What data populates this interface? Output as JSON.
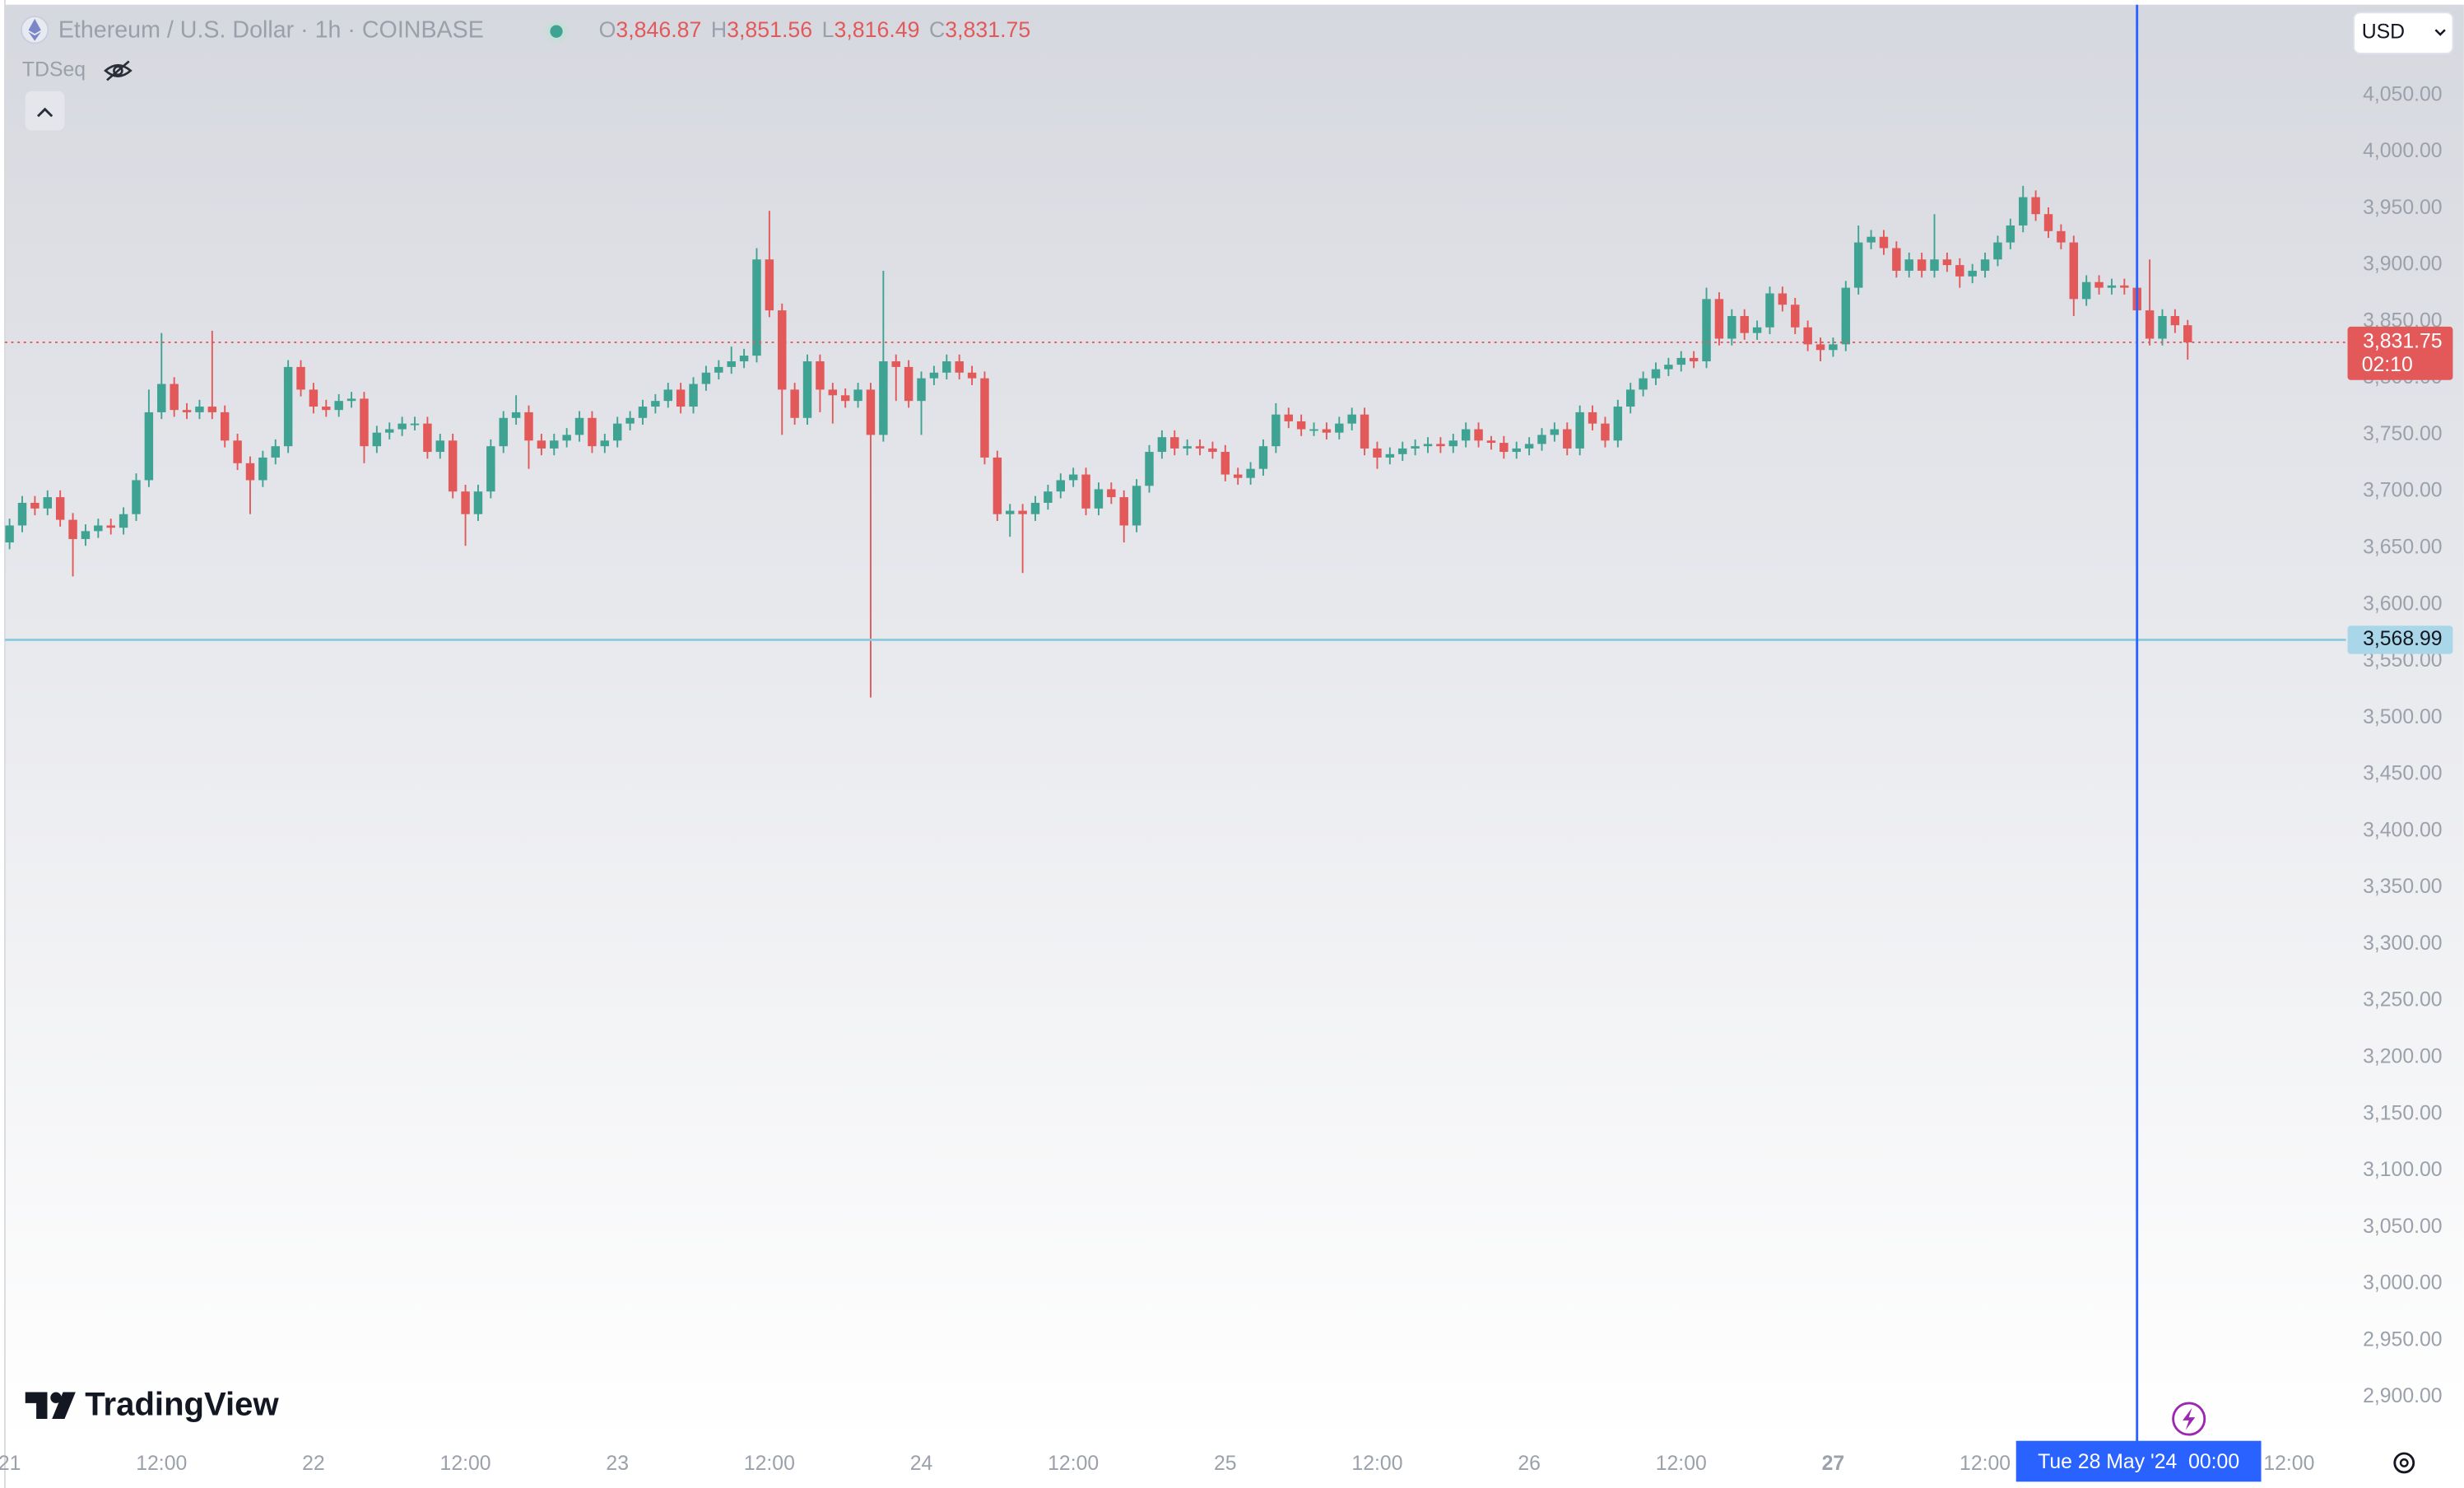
{
  "chart_data": {
    "type": "candlestick",
    "title": "Ethereum / U.S. Dollar · 1h · COINBASE",
    "indicator": "TDSeq",
    "currency": "USD",
    "brand": "TradingView",
    "ohlc_legend": [
      {
        "key": "O",
        "value": "3,846.87"
      },
      {
        "key": "H",
        "value": "3,851.56"
      },
      {
        "key": "L",
        "value": "3,816.49"
      },
      {
        "key": "C",
        "value": "3,831.75"
      }
    ],
    "up_color": "#3fa393",
    "down_color": "#e3595a",
    "grid": false,
    "open": [
      3655,
      3670,
      3690,
      3685,
      3695,
      3675,
      3658,
      3665,
      3670,
      3668,
      3680,
      3710,
      3770,
      3795,
      3772,
      3770,
      3775,
      3770,
      3745,
      3725,
      3710,
      3730,
      3740,
      3810,
      3790,
      3775,
      3772,
      3780,
      3782,
      3740,
      3752,
      3755,
      3760,
      3760,
      3735,
      3745,
      3700,
      3680,
      3700,
      3740,
      3765,
      3770,
      3745,
      3738,
      3745,
      3750,
      3765,
      3740,
      3745,
      3760,
      3765,
      3775,
      3780,
      3790,
      3775,
      3795,
      3805,
      3810,
      3815,
      3820,
      3905,
      3860,
      3790,
      3765,
      3815,
      3790,
      3785,
      3780,
      3790,
      3750,
      3815,
      3810,
      3780,
      3800,
      3805,
      3815,
      3805,
      3800,
      3730,
      3680,
      3683,
      3680,
      3690,
      3700,
      3710,
      3715,
      3685,
      3702,
      3695,
      3670,
      3705,
      3735,
      3748,
      3738,
      3740,
      3738,
      3735,
      3715,
      3712,
      3720,
      3740,
      3768,
      3762,
      3755,
      3755,
      3752,
      3760,
      3768,
      3738,
      3730,
      3733,
      3738,
      3740,
      3742,
      3740,
      3745,
      3755,
      3745,
      3743,
      3735,
      3738,
      3742,
      3750,
      3755,
      3738,
      3770,
      3760,
      3745,
      3775,
      3790,
      3800,
      3808,
      3812,
      3818,
      3815,
      3870,
      3835,
      3855,
      3840,
      3845,
      3875,
      3865,
      3845,
      3830,
      3825,
      3830,
      3880,
      3920,
      3925,
      3915,
      3895,
      3905,
      3895,
      3905,
      3900,
      3890,
      3895,
      3905,
      3920,
      3935,
      3960,
      3945,
      3930,
      3920,
      3870,
      3885,
      3880,
      3882,
      3880,
      3860,
      3835,
      3855,
      3846.87
    ],
    "high": [
      3676,
      3696,
      3696,
      3701,
      3701,
      3681,
      3671,
      3676,
      3676,
      3686,
      3716,
      3790,
      3840,
      3801,
      3778,
      3781,
      3842,
      3776,
      3751,
      3731,
      3736,
      3746,
      3816,
      3816,
      3796,
      3781,
      3786,
      3788,
      3788,
      3758,
      3761,
      3766,
      3766,
      3766,
      3751,
      3751,
      3706,
      3706,
      3746,
      3771,
      3785,
      3776,
      3751,
      3751,
      3756,
      3771,
      3771,
      3751,
      3766,
      3771,
      3781,
      3786,
      3796,
      3796,
      3801,
      3811,
      3816,
      3828,
      3826,
      3915,
      3948,
      3866,
      3796,
      3821,
      3821,
      3796,
      3791,
      3796,
      3796,
      3895,
      3821,
      3816,
      3806,
      3811,
      3821,
      3821,
      3811,
      3806,
      3736,
      3689,
      3689,
      3696,
      3706,
      3716,
      3721,
      3721,
      3708,
      3708,
      3701,
      3711,
      3741,
      3754,
      3754,
      3746,
      3746,
      3744,
      3741,
      3721,
      3726,
      3746,
      3778,
      3774,
      3768,
      3761,
      3761,
      3766,
      3774,
      3774,
      3744,
      3739,
      3744,
      3746,
      3748,
      3748,
      3751,
      3761,
      3761,
      3749,
      3749,
      3744,
      3748,
      3756,
      3761,
      3761,
      3776,
      3776,
      3766,
      3781,
      3796,
      3806,
      3814,
      3818,
      3824,
      3824,
      3880,
      3876,
      3861,
      3861,
      3851,
      3881,
      3881,
      3871,
      3851,
      3836,
      3836,
      3886,
      3935,
      3931,
      3931,
      3921,
      3911,
      3911,
      3945,
      3911,
      3906,
      3901,
      3911,
      3926,
      3941,
      3970,
      3966,
      3951,
      3936,
      3926,
      3891,
      3891,
      3888,
      3888,
      3886,
      3905,
      3861,
      3861,
      3851.56
    ],
    "low": [
      3649,
      3664,
      3679,
      3679,
      3669,
      3625,
      3652,
      3659,
      3662,
      3662,
      3674,
      3704,
      3764,
      3766,
      3764,
      3764,
      3764,
      3739,
      3719,
      3680,
      3704,
      3724,
      3734,
      3784,
      3769,
      3766,
      3766,
      3774,
      3725,
      3734,
      3746,
      3749,
      3754,
      3729,
      3729,
      3694,
      3652,
      3674,
      3694,
      3734,
      3759,
      3720,
      3732,
      3732,
      3739,
      3744,
      3734,
      3734,
      3739,
      3754,
      3759,
      3769,
      3774,
      3769,
      3769,
      3789,
      3799,
      3804,
      3809,
      3814,
      3854,
      3750,
      3759,
      3759,
      3770,
      3760,
      3774,
      3774,
      3518,
      3744,
      3780,
      3774,
      3750,
      3794,
      3799,
      3799,
      3794,
      3724,
      3674,
      3660,
      3628,
      3674,
      3684,
      3694,
      3704,
      3679,
      3679,
      3689,
      3655,
      3664,
      3699,
      3729,
      3732,
      3732,
      3732,
      3729,
      3709,
      3706,
      3706,
      3714,
      3734,
      3756,
      3749,
      3749,
      3746,
      3746,
      3754,
      3732,
      3720,
      3724,
      3727,
      3732,
      3734,
      3734,
      3734,
      3739,
      3739,
      3737,
      3729,
      3729,
      3732,
      3736,
      3744,
      3732,
      3732,
      3754,
      3739,
      3739,
      3769,
      3784,
      3794,
      3802,
      3806,
      3809,
      3809,
      3829,
      3829,
      3834,
      3834,
      3839,
      3859,
      3839,
      3824,
      3815,
      3819,
      3824,
      3874,
      3914,
      3909,
      3889,
      3889,
      3889,
      3889,
      3894,
      3880,
      3884,
      3889,
      3899,
      3914,
      3929,
      3939,
      3924,
      3914,
      3855,
      3864,
      3874,
      3874,
      3874,
      3854,
      3829,
      3829,
      3840,
      3816.49
    ],
    "close": [
      3670,
      3690,
      3685,
      3695,
      3675,
      3658,
      3665,
      3670,
      3668,
      3680,
      3710,
      3770,
      3795,
      3772,
      3770,
      3775,
      3770,
      3745,
      3725,
      3710,
      3730,
      3740,
      3810,
      3790,
      3775,
      3772,
      3780,
      3782,
      3740,
      3752,
      3755,
      3760,
      3760,
      3735,
      3745,
      3700,
      3680,
      3700,
      3740,
      3765,
      3770,
      3745,
      3738,
      3745,
      3750,
      3765,
      3740,
      3745,
      3760,
      3765,
      3775,
      3780,
      3790,
      3775,
      3795,
      3805,
      3810,
      3815,
      3820,
      3905,
      3860,
      3790,
      3765,
      3815,
      3790,
      3785,
      3780,
      3790,
      3750,
      3815,
      3810,
      3780,
      3800,
      3805,
      3815,
      3805,
      3800,
      3730,
      3680,
      3683,
      3680,
      3690,
      3700,
      3710,
      3715,
      3685,
      3702,
      3695,
      3670,
      3705,
      3735,
      3748,
      3738,
      3740,
      3738,
      3735,
      3715,
      3712,
      3720,
      3740,
      3768,
      3762,
      3755,
      3755,
      3752,
      3760,
      3768,
      3738,
      3730,
      3733,
      3738,
      3740,
      3742,
      3740,
      3745,
      3755,
      3745,
      3743,
      3735,
      3738,
      3742,
      3750,
      3755,
      3738,
      3770,
      3760,
      3745,
      3775,
      3790,
      3800,
      3808,
      3812,
      3818,
      3815,
      3870,
      3835,
      3855,
      3840,
      3845,
      3875,
      3865,
      3845,
      3830,
      3825,
      3830,
      3880,
      3920,
      3925,
      3915,
      3895,
      3905,
      3895,
      3905,
      3900,
      3890,
      3895,
      3905,
      3920,
      3935,
      3960,
      3945,
      3930,
      3920,
      3870,
      3885,
      3880,
      3882,
      3880,
      3860,
      3835,
      3855,
      3846.87,
      3831.75
    ],
    "xlim": [
      -0.37,
      184.5
    ],
    "xticks": [
      {
        "value": 0,
        "label": "21"
      },
      {
        "value": 12,
        "label": "12:00"
      },
      {
        "value": 24,
        "label": "22"
      },
      {
        "value": 36,
        "label": "12:00"
      },
      {
        "value": 48,
        "label": "23"
      },
      {
        "value": 60,
        "label": "12:00"
      },
      {
        "value": 72,
        "label": "24"
      },
      {
        "value": 84,
        "label": "12:00"
      },
      {
        "value": 96,
        "label": "25"
      },
      {
        "value": 108,
        "label": "12:00"
      },
      {
        "value": 120,
        "label": "26"
      },
      {
        "value": 132,
        "label": "12:00"
      },
      {
        "value": 144,
        "label": "27",
        "bold": true
      },
      {
        "value": 156,
        "label": "12:00"
      },
      {
        "value": 180,
        "label": "12:00"
      }
    ],
    "ylim": [
      2860,
      4130
    ],
    "yticks": [
      {
        "value": 2900,
        "label": "2,900.00"
      },
      {
        "value": 2950,
        "label": "2,950.00"
      },
      {
        "value": 3000,
        "label": "3,000.00"
      },
      {
        "value": 3050,
        "label": "3,050.00"
      },
      {
        "value": 3100,
        "label": "3,100.00"
      },
      {
        "value": 3150,
        "label": "3,150.00"
      },
      {
        "value": 3200,
        "label": "3,200.00"
      },
      {
        "value": 3250,
        "label": "3,250.00"
      },
      {
        "value": 3300,
        "label": "3,300.00"
      },
      {
        "value": 3350,
        "label": "3,350.00"
      },
      {
        "value": 3400,
        "label": "3,400.00"
      },
      {
        "value": 3450,
        "label": "3,450.00"
      },
      {
        "value": 3500,
        "label": "3,500.00"
      },
      {
        "value": 3550,
        "label": "3,550.00"
      },
      {
        "value": 3600,
        "label": "3,600.00"
      },
      {
        "value": 3650,
        "label": "3,650.00"
      },
      {
        "value": 3700,
        "label": "3,700.00"
      },
      {
        "value": 3750,
        "label": "3,750.00"
      },
      {
        "value": 3800,
        "label": "3,800.00"
      },
      {
        "value": 3850,
        "label": "3,850.00"
      },
      {
        "value": 3900,
        "label": "3,900.00"
      },
      {
        "value": 3950,
        "label": "3,950.00"
      },
      {
        "value": 4000,
        "label": "4,000.00"
      },
      {
        "value": 4050,
        "label": "4,050.00"
      }
    ],
    "last_price": {
      "value": 3831.75,
      "label": "3,831.75",
      "countdown": "02:10",
      "color": "#e3595a"
    },
    "crosshair": {
      "x": 168,
      "x_label": "Tue 28 May '24  00:00",
      "y": 3568.99,
      "y_label": "3,568.99",
      "color": "#2962ff",
      "y_line_color": "#8fcbe0"
    }
  }
}
